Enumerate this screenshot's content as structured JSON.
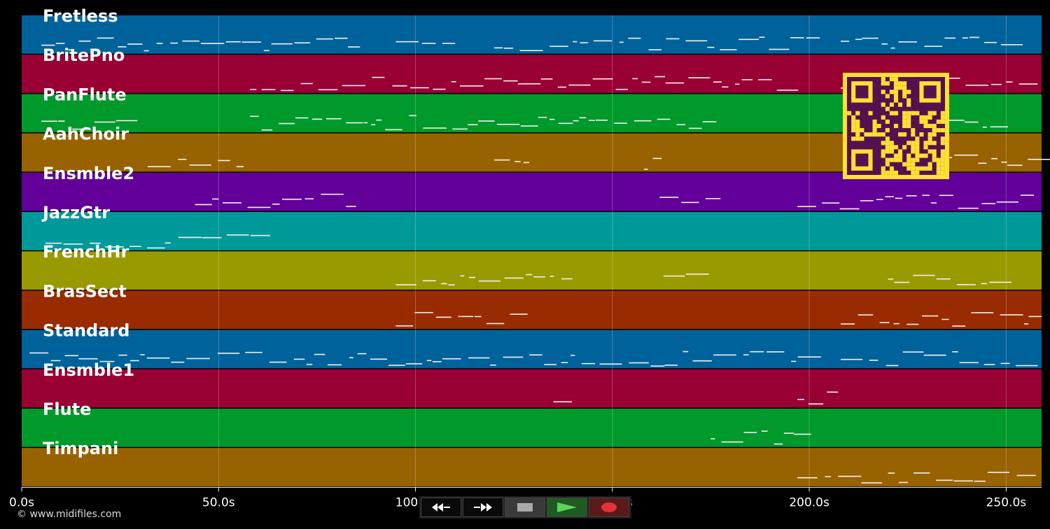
{
  "timeline": {
    "tick_labels": [
      "0.0s",
      "50.0s",
      "100.0s",
      "150.0s",
      "200.0s",
      "250.0s"
    ],
    "tick_seconds": [
      0,
      50,
      100,
      150,
      200,
      250
    ],
    "duration_seconds": 259
  },
  "tracks": [
    {
      "name": "Fretless",
      "color": "#00629a"
    },
    {
      "name": "BritePno",
      "color": "#990033"
    },
    {
      "name": "PanFlute",
      "color": "#00992b"
    },
    {
      "name": "AahChoir",
      "color": "#996200"
    },
    {
      "name": "Ensmble2",
      "color": "#620099"
    },
    {
      "name": "JazzGtr",
      "color": "#009999"
    },
    {
      "name": "FrenchHr",
      "color": "#999900"
    },
    {
      "name": "BrasSect",
      "color": "#992b00"
    },
    {
      "name": "Standard",
      "color": "#00629a"
    },
    {
      "name": "Ensmble1",
      "color": "#990033"
    },
    {
      "name": "Flute",
      "color": "#00992b"
    },
    {
      "name": "Timpani",
      "color": "#996200"
    }
  ],
  "footer": {
    "copyright": "© www.midifiles.com"
  },
  "transport": {
    "rewind": "rewind-icon",
    "fast_forward": "fast-forward-icon",
    "stop": "stop-icon",
    "play": "play-icon",
    "record": "record-icon"
  },
  "qr_code": {
    "color": "#ffe033",
    "background": "#55114f"
  }
}
